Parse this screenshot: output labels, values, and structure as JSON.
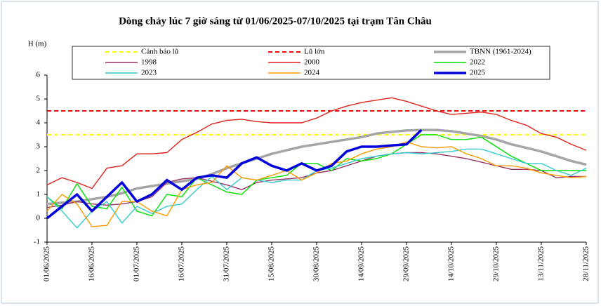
{
  "chart_data": {
    "type": "line",
    "title": "Dòng chảy lúc 7 giờ sáng từ 01/06/2025-07/10/2025 tại trạm Tân Châu",
    "y_label": "H (m)",
    "x": [
      "01/06/2025",
      "06/06/2025",
      "11/06/2025",
      "16/06/2025",
      "21/06/2025",
      "26/06/2025",
      "01/07/2025",
      "06/07/2025",
      "11/07/2025",
      "16/07/2025",
      "21/07/2025",
      "26/07/2025",
      "31/07/2025",
      "05/08/2025",
      "10/08/2025",
      "15/08/2025",
      "20/08/2025",
      "25/08/2025",
      "30/08/2025",
      "04/09/2025",
      "09/09/2025",
      "14/09/2025",
      "19/09/2025",
      "24/09/2025",
      "29/09/2025",
      "04/10/2025",
      "09/10/2025",
      "14/10/2025",
      "19/10/2025",
      "24/10/2025",
      "29/10/2025",
      "03/11/2025",
      "08/11/2025",
      "13/11/2025",
      "18/11/2025",
      "23/11/2025",
      "28/11/2025"
    ],
    "xlim": [
      "01/06/2025",
      "28/11/2025"
    ],
    "xticks": [
      "01/06/2025",
      "16/06/2025",
      "01/07/2025",
      "16/07/2025",
      "31/07/2025",
      "15/08/2025",
      "30/08/2025",
      "14/09/2025",
      "29/09/2025",
      "14/10/2025",
      "29/10/2025",
      "13/11/2025",
      "28/11/2025"
    ],
    "ylim": [
      -1,
      6
    ],
    "yticks": [
      -1,
      0,
      1,
      2,
      3,
      4,
      5,
      6
    ],
    "series": [
      {
        "name": "Cảnh báo lũ",
        "color": "#ffff00",
        "dashed": true,
        "values": [
          3.5,
          3.5,
          3.5,
          3.5,
          3.5,
          3.5,
          3.5,
          3.5,
          3.5,
          3.5,
          3.5,
          3.5,
          3.5,
          3.5,
          3.5,
          3.5,
          3.5,
          3.5,
          3.5,
          3.5,
          3.5,
          3.5,
          3.5,
          3.5,
          3.5,
          3.5,
          3.5,
          3.5,
          3.5,
          3.5,
          3.5,
          3.5,
          3.5,
          3.5,
          3.5,
          3.5,
          3.5
        ]
      },
      {
        "name": "Lũ lớn",
        "color": "#ff0000",
        "dashed": true,
        "values": [
          4.5,
          4.5,
          4.5,
          4.5,
          4.5,
          4.5,
          4.5,
          4.5,
          4.5,
          4.5,
          4.5,
          4.5,
          4.5,
          4.5,
          4.5,
          4.5,
          4.5,
          4.5,
          4.5,
          4.5,
          4.5,
          4.5,
          4.5,
          4.5,
          4.5,
          4.5,
          4.5,
          4.5,
          4.5,
          4.5,
          4.5,
          4.5,
          4.5,
          4.5,
          4.5,
          4.5,
          4.5
        ]
      },
      {
        "name": "TBNN (1961-2024)",
        "color": "#a6a6a6",
        "emphasis": true,
        "values": [
          0.6,
          0.65,
          0.7,
          0.8,
          0.9,
          1.05,
          1.25,
          1.35,
          1.45,
          1.55,
          1.65,
          1.85,
          2.1,
          2.3,
          2.5,
          2.7,
          2.85,
          3.0,
          3.1,
          3.2,
          3.3,
          3.4,
          3.55,
          3.62,
          3.68,
          3.7,
          3.7,
          3.65,
          3.55,
          3.45,
          3.3,
          3.1,
          2.95,
          2.8,
          2.6,
          2.4,
          2.25
        ]
      },
      {
        "name": "1998",
        "color": "#993366",
        "values": [
          0.45,
          0.55,
          0.7,
          0.6,
          0.55,
          0.6,
          0.7,
          0.9,
          1.5,
          1.65,
          1.7,
          1.55,
          1.4,
          1.2,
          1.5,
          1.6,
          1.65,
          1.7,
          1.9,
          2.0,
          2.2,
          2.4,
          2.6,
          2.7,
          2.75,
          2.75,
          2.7,
          2.6,
          2.5,
          2.35,
          2.2,
          2.05,
          2.05,
          2.0,
          1.7,
          1.75,
          1.75
        ]
      },
      {
        "name": "2000",
        "color": "#e0201b",
        "values": [
          1.4,
          1.7,
          1.5,
          1.25,
          2.1,
          2.2,
          2.7,
          2.7,
          2.75,
          3.3,
          3.6,
          3.95,
          4.1,
          4.15,
          4.05,
          4.0,
          4.0,
          4.0,
          4.2,
          4.5,
          4.7,
          4.85,
          4.95,
          5.05,
          4.9,
          4.7,
          4.5,
          4.35,
          4.4,
          4.45,
          4.35,
          4.1,
          3.9,
          3.55,
          3.4,
          3.1,
          2.85
        ]
      },
      {
        "name": "2022",
        "color": "#00e000",
        "values": [
          0.9,
          0.4,
          1.45,
          0.5,
          0.4,
          1.3,
          0.3,
          0.1,
          1.0,
          0.9,
          1.7,
          1.4,
          1.1,
          1.0,
          1.6,
          1.7,
          1.8,
          2.3,
          2.3,
          2.0,
          2.5,
          2.4,
          2.5,
          2.7,
          3.1,
          3.5,
          3.5,
          3.3,
          3.3,
          3.4,
          3.0,
          2.6,
          2.3,
          2.0,
          2.0,
          2.0,
          2.0
        ]
      },
      {
        "name": "2023",
        "color": "#33cccc",
        "values": [
          0.9,
          0.3,
          -0.4,
          0.3,
          0.7,
          -0.2,
          0.5,
          0.2,
          0.5,
          0.6,
          1.2,
          1.75,
          1.2,
          1.7,
          1.6,
          1.5,
          1.6,
          1.6,
          2.0,
          2.1,
          2.3,
          2.5,
          2.6,
          2.7,
          2.75,
          2.7,
          2.75,
          2.8,
          2.9,
          2.9,
          2.7,
          2.5,
          2.3,
          2.3,
          2.0,
          1.8,
          2.1
        ]
      },
      {
        "name": "2024",
        "color": "#ff9900",
        "values": [
          0.3,
          1.0,
          0.6,
          -0.35,
          -0.3,
          0.7,
          0.7,
          0.3,
          0.1,
          1.2,
          1.4,
          1.5,
          2.2,
          1.7,
          1.6,
          1.8,
          2.0,
          1.6,
          1.9,
          2.3,
          2.4,
          2.7,
          2.9,
          3.0,
          3.2,
          3.0,
          2.95,
          3.0,
          2.7,
          2.5,
          2.2,
          2.2,
          2.1,
          1.9,
          1.8,
          1.7,
          1.75
        ]
      },
      {
        "name": "2025",
        "color": "#0000dd",
        "emphasis": true,
        "values": [
          0,
          0.5,
          1.0,
          0.3,
          0.9,
          1.5,
          0.7,
          1.0,
          1.6,
          1.2,
          1.7,
          1.8,
          1.7,
          2.3,
          2.55,
          2.2,
          2.0,
          2.3,
          2.0,
          2.2,
          2.8,
          3.0,
          3.0,
          3.05,
          3.1,
          3.7,
          null,
          null,
          null,
          null,
          null,
          null,
          null,
          null,
          null,
          null,
          null
        ]
      }
    ]
  }
}
